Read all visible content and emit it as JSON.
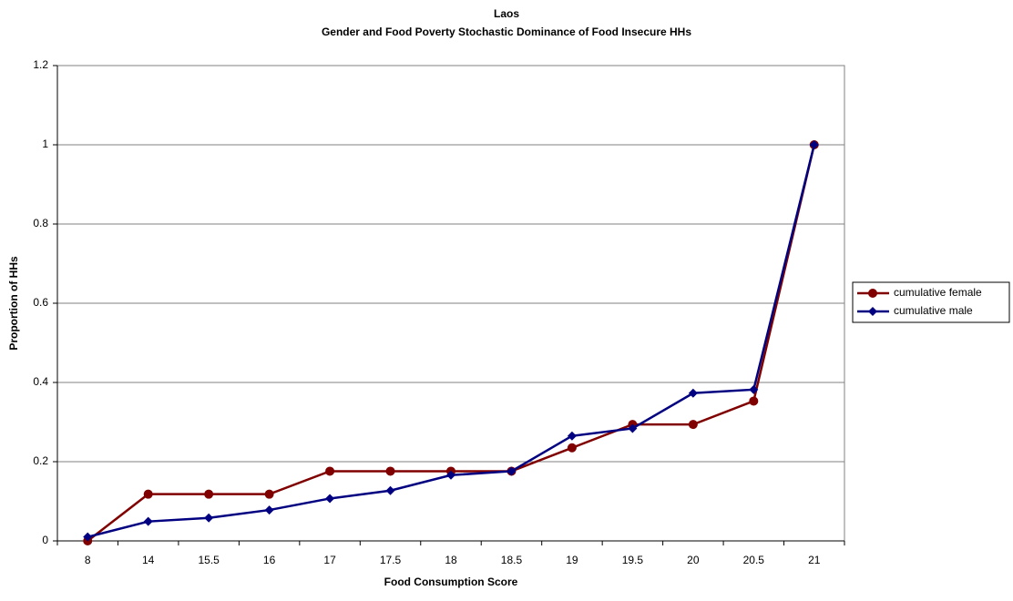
{
  "chart_data": {
    "type": "line",
    "title": "Laos",
    "subtitle": "Gender and Food Poverty Stochastic Dominance of Food Insecure HHs",
    "x_label": "Food Consumption Score",
    "y_label": "Proportion of HHs",
    "categories": [
      "8",
      "14",
      "15.5",
      "16",
      "17",
      "17.5",
      "18",
      "18.5",
      "19",
      "19.5",
      "20",
      "20.5",
      "21"
    ],
    "series": [
      {
        "name": "cumulative female",
        "color": "#800000",
        "marker": "circle",
        "values": [
          0,
          0.118,
          0.118,
          0.118,
          0.176,
          0.176,
          0.176,
          0.176,
          0.235,
          0.294,
          0.294,
          0.353,
          1
        ]
      },
      {
        "name": "cumulative male",
        "color": "#000080",
        "marker": "diamond",
        "values": [
          0.01,
          0.049,
          0.058,
          0.078,
          0.107,
          0.127,
          0.166,
          0.176,
          0.265,
          0.284,
          0.373,
          0.382,
          1
        ]
      }
    ],
    "ylim": [
      0,
      1.2
    ],
    "yticks": [
      0,
      0.2,
      0.4,
      0.6,
      0.8,
      1,
      1.2
    ],
    "grid": true,
    "legend": "right"
  }
}
